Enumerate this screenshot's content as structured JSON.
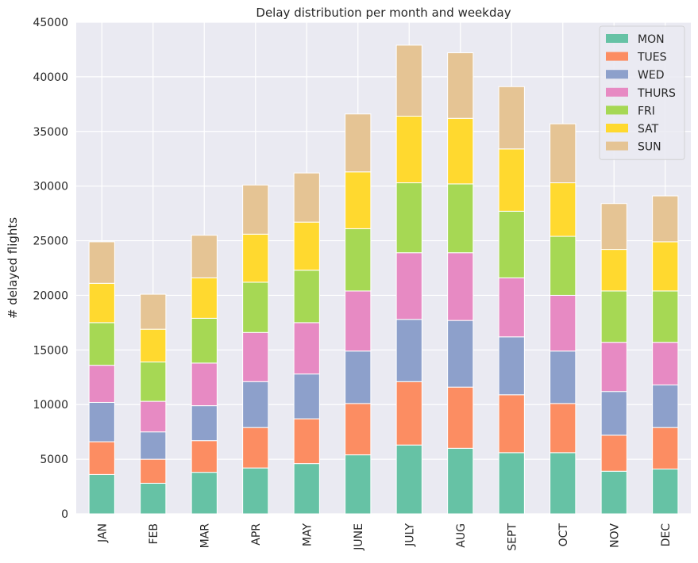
{
  "chart_data": {
    "type": "bar",
    "stacked": true,
    "title": "Delay distribution per month and weekday",
    "xlabel": "",
    "ylabel": "# delayed flights",
    "ylim": [
      0,
      45000
    ],
    "yticks": [
      0,
      5000,
      10000,
      15000,
      20000,
      25000,
      30000,
      35000,
      40000,
      45000
    ],
    "grid": true,
    "legend_position": "top-right",
    "categories": [
      "JAN",
      "FEB",
      "MAR",
      "APR",
      "MAY",
      "JUNE",
      "JULY",
      "AUG",
      "SEPT",
      "OCT",
      "NOV",
      "DEC"
    ],
    "series": [
      {
        "name": "MON",
        "color": "#66c2a5",
        "values": [
          3600,
          2800,
          3800,
          4200,
          4600,
          5400,
          6300,
          6000,
          5600,
          5600,
          3900,
          4100
        ]
      },
      {
        "name": "TUES",
        "color": "#fc8d62",
        "values": [
          3000,
          2200,
          2900,
          3700,
          4100,
          4700,
          5800,
          5600,
          5300,
          4500,
          3300,
          3800
        ]
      },
      {
        "name": "WED",
        "color": "#8da0cb",
        "values": [
          3600,
          2500,
          3200,
          4200,
          4100,
          4800,
          5700,
          6100,
          5300,
          4800,
          4000,
          3900
        ]
      },
      {
        "name": "THURS",
        "color": "#e78ac3",
        "values": [
          3400,
          2800,
          3900,
          4500,
          4700,
          5500,
          6100,
          6200,
          5400,
          5100,
          4500,
          3900
        ]
      },
      {
        "name": "FRI",
        "color": "#a6d854",
        "values": [
          3900,
          3600,
          4100,
          4600,
          4800,
          5700,
          6400,
          6300,
          6100,
          5400,
          4700,
          4700
        ]
      },
      {
        "name": "SAT",
        "color": "#ffd92f",
        "values": [
          3600,
          3000,
          3700,
          4400,
          4400,
          5200,
          6100,
          6000,
          5700,
          4900,
          3800,
          4500
        ]
      },
      {
        "name": "SUN",
        "color": "#e5c494",
        "values": [
          3800,
          3200,
          3900,
          4500,
          4500,
          5300,
          6500,
          6000,
          5700,
          5400,
          4200,
          4200
        ]
      }
    ]
  }
}
